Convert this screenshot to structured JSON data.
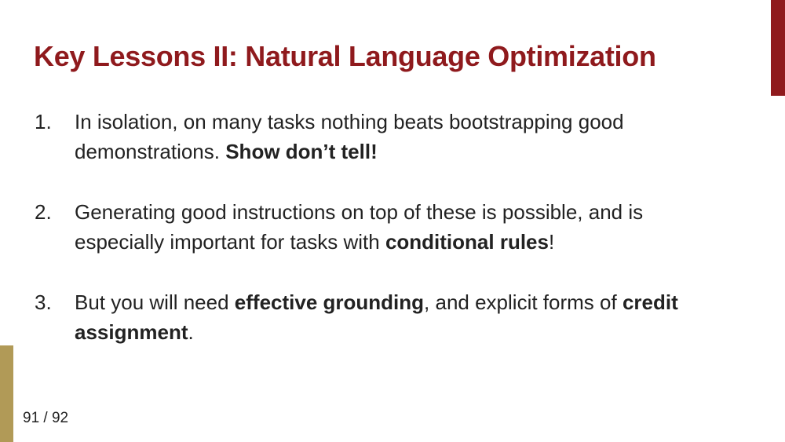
{
  "slide": {
    "title": "Key Lessons II: Natural Language Optimization",
    "page_number": "91 / 92",
    "colors": {
      "title": "#8f1a1d",
      "accent_right": "#8f1a1d",
      "accent_left": "#b19a57"
    }
  },
  "lessons": [
    {
      "number": "1.",
      "segments": [
        {
          "text": "In isolation, on many tasks nothing beats bootstrapping good demonstrations. ",
          "bold": false
        },
        {
          "text": "Show don’t tell!",
          "bold": true
        }
      ]
    },
    {
      "number": "2.",
      "segments": [
        {
          "text": "Generating good instructions on top of these is possible, and is especially important for tasks with ",
          "bold": false
        },
        {
          "text": "conditional rules",
          "bold": true
        },
        {
          "text": "!",
          "bold": false
        }
      ]
    },
    {
      "number": "3.",
      "segments": [
        {
          "text": "But you will need ",
          "bold": false
        },
        {
          "text": "effective grounding",
          "bold": true
        },
        {
          "text": ", and explicit forms of ",
          "bold": false
        },
        {
          "text": "credit assignment",
          "bold": true
        },
        {
          "text": ".",
          "bold": false
        }
      ]
    }
  ]
}
